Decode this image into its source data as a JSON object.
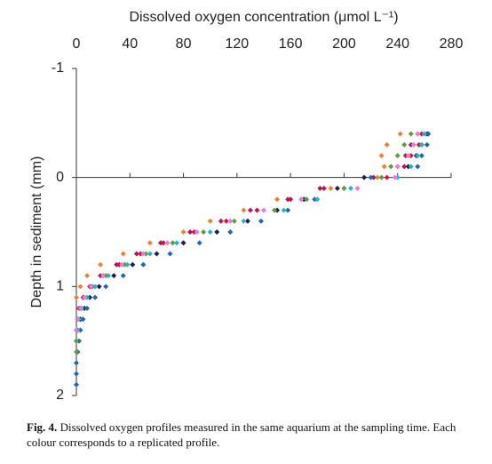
{
  "chart_data": {
    "type": "scatter",
    "x_label": "Dissolved oxygen concentration (μmol L⁻¹)",
    "y_label": "Depth in sediment (mm)",
    "xlim": [
      0,
      280
    ],
    "xticks": [
      0,
      40,
      80,
      120,
      160,
      200,
      240,
      280
    ],
    "ylim": [
      -1,
      2
    ],
    "yticks": [
      -1,
      0,
      1,
      2
    ],
    "y_reversed": true,
    "series": [
      {
        "color": "#e8823a",
        "x": [
          242,
          232,
          228,
          230,
          225,
          190,
          150,
          125,
          100,
          80,
          55,
          35,
          18,
          8,
          3,
          0
        ],
        "values": [
          -0.4,
          -0.3,
          -0.2,
          -0.1,
          0,
          0.1,
          0.2,
          0.3,
          0.4,
          0.5,
          0.6,
          0.7,
          0.8,
          0.9,
          1.0,
          1.1
        ]
      },
      {
        "color": "#d0103a",
        "x": [
          258,
          256,
          250,
          245,
          232,
          185,
          160,
          135,
          112,
          88,
          65,
          48,
          32,
          20,
          12,
          6,
          3,
          1,
          0
        ],
        "values": [
          -0.4,
          -0.3,
          -0.2,
          -0.1,
          0,
          0.1,
          0.2,
          0.3,
          0.4,
          0.5,
          0.6,
          0.7,
          0.8,
          0.9,
          1.0,
          1.1,
          1.2,
          1.3,
          1.4
        ]
      },
      {
        "color": "#a8195c",
        "x": [
          255,
          250,
          246,
          240,
          222,
          182,
          158,
          130,
          108,
          85,
          63,
          45,
          30,
          18,
          10,
          5,
          2,
          1,
          0
        ],
        "values": [
          -0.4,
          -0.3,
          -0.2,
          -0.1,
          0,
          0.1,
          0.2,
          0.3,
          0.4,
          0.5,
          0.6,
          0.7,
          0.8,
          0.9,
          1.0,
          1.1,
          1.2,
          1.3,
          1.4
        ]
      },
      {
        "color": "#1b1f4d",
        "x": [
          262,
          258,
          254,
          248,
          215,
          195,
          170,
          150,
          128,
          105,
          80,
          60,
          42,
          28,
          17,
          10,
          6,
          3,
          1,
          0
        ],
        "values": [
          -0.4,
          -0.3,
          -0.2,
          -0.1,
          0,
          0.1,
          0.2,
          0.3,
          0.4,
          0.5,
          0.6,
          0.7,
          0.8,
          0.9,
          1.0,
          1.1,
          1.2,
          1.3,
          1.4,
          1.5
        ]
      },
      {
        "color": "#2166ac",
        "x": [
          263,
          262,
          258,
          255,
          220,
          200,
          178,
          158,
          138,
          115,
          92,
          70,
          50,
          35,
          22,
          14,
          8,
          5,
          3,
          2,
          1,
          0,
          0,
          0
        ],
        "values": [
          -0.4,
          -0.3,
          -0.2,
          -0.1,
          0,
          0.1,
          0.2,
          0.3,
          0.4,
          0.5,
          0.6,
          0.7,
          0.8,
          0.9,
          1.0,
          1.1,
          1.2,
          1.3,
          1.4,
          1.5,
          1.6,
          1.7,
          1.8,
          1.9
        ]
      },
      {
        "color": "#2ab0c8",
        "x": [
          260,
          258,
          255,
          250,
          240,
          205,
          180,
          155,
          125,
          100,
          75,
          55,
          38,
          24,
          14,
          8,
          4,
          2,
          1,
          0
        ],
        "values": [
          -0.4,
          -0.3,
          -0.2,
          -0.1,
          0,
          0.1,
          0.2,
          0.3,
          0.4,
          0.5,
          0.6,
          0.7,
          0.8,
          0.9,
          1.0,
          1.1,
          1.2,
          1.3,
          1.4,
          1.5
        ]
      },
      {
        "color": "#5e9b3c",
        "x": [
          250,
          245,
          240,
          235,
          228,
          200,
          172,
          148,
          118,
          95,
          72,
          52,
          36,
          22,
          12,
          6,
          3,
          1,
          0,
          0,
          0
        ],
        "values": [
          -0.4,
          -0.3,
          -0.2,
          -0.1,
          0,
          0.1,
          0.2,
          0.3,
          0.4,
          0.5,
          0.6,
          0.7,
          0.8,
          0.9,
          1.0,
          1.1,
          1.2,
          1.3,
          1.4,
          1.5,
          1.6
        ]
      },
      {
        "color": "#e87ad8",
        "x": [
          255,
          252,
          248,
          240,
          238,
          210,
          168,
          140,
          115,
          90,
          68,
          50,
          34,
          20,
          11,
          6,
          3,
          1,
          0
        ],
        "values": [
          -0.4,
          -0.3,
          -0.2,
          -0.1,
          0,
          0.1,
          0.2,
          0.3,
          0.4,
          0.5,
          0.6,
          0.7,
          0.8,
          0.9,
          1.0,
          1.1,
          1.2,
          1.3,
          1.4
        ]
      }
    ]
  },
  "caption_label": "Fig. 4.",
  "caption": "Dissolved oxygen profiles measured in the same aquarium at the sampling time. Each colour corresponds to a replicated profile."
}
